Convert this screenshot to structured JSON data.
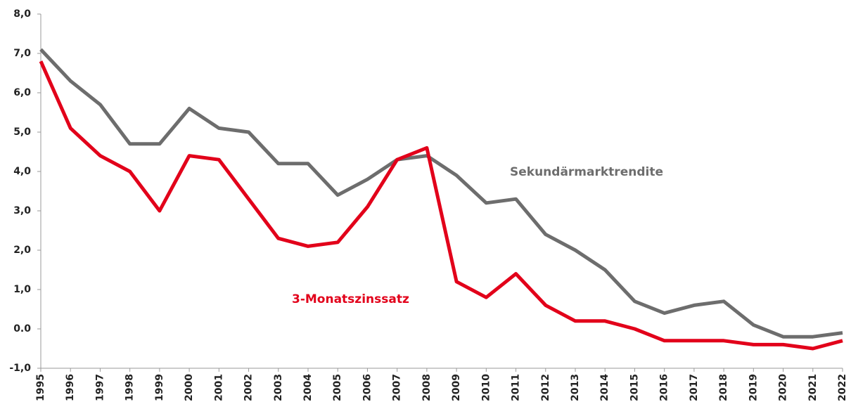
{
  "chart_data": {
    "type": "line",
    "categories": [
      "1995",
      "1996",
      "1997",
      "1998",
      "1999",
      "2000",
      "2001",
      "2002",
      "2003",
      "2004",
      "2005",
      "2006",
      "2007",
      "2008",
      "2009",
      "2010",
      "2011",
      "2012",
      "2013",
      "2014",
      "2015",
      "2016",
      "2017",
      "2018",
      "2019",
      "2020",
      "2021",
      "2022"
    ],
    "series": [
      {
        "name": "Sekundärmarktrendite",
        "color": "#6d6d6d",
        "values": [
          7.1,
          6.3,
          5.7,
          4.7,
          4.7,
          5.6,
          5.1,
          5.0,
          4.2,
          4.2,
          3.4,
          3.8,
          4.3,
          4.4,
          3.9,
          3.2,
          3.3,
          2.4,
          2.0,
          1.5,
          0.7,
          0.4,
          0.6,
          0.7,
          0.1,
          -0.2,
          -0.2,
          -0.1
        ]
      },
      {
        "name": "3-Monatszinssatz",
        "color": "#e2001a",
        "values": [
          6.8,
          5.1,
          4.4,
          4.0,
          3.0,
          4.4,
          4.3,
          3.3,
          2.3,
          2.1,
          2.2,
          3.1,
          4.3,
          4.6,
          1.2,
          0.8,
          1.4,
          0.6,
          0.2,
          0.2,
          0.0,
          -0.3,
          -0.3,
          -0.3,
          -0.4,
          -0.4,
          -0.5,
          -0.3
        ]
      }
    ],
    "ylim": [
      -1,
      8
    ],
    "yticks": [
      {
        "value": -1,
        "label": "-1,0"
      },
      {
        "value": 0,
        "label": "0.0"
      },
      {
        "value": 1,
        "label": "1,0"
      },
      {
        "value": 2,
        "label": "2,0"
      },
      {
        "value": 3,
        "label": "3,0"
      },
      {
        "value": 4,
        "label": "4,0"
      },
      {
        "value": 5,
        "label": "5,0"
      },
      {
        "value": 6,
        "label": "6,0"
      },
      {
        "value": 7,
        "label": "7,0"
      },
      {
        "value": 8,
        "label": "8,0"
      }
    ],
    "grid": false
  }
}
